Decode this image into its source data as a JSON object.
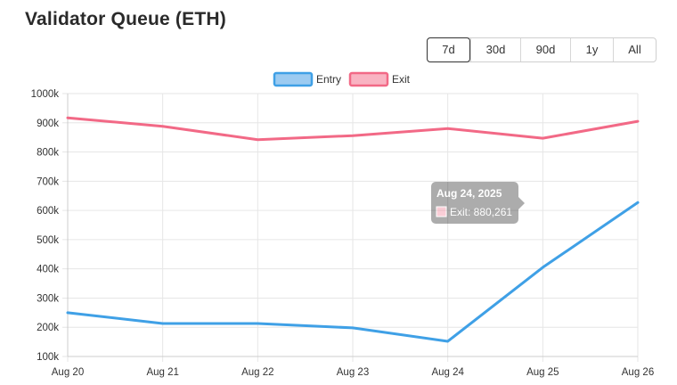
{
  "header": {
    "title": "Validator Queue (ETH)"
  },
  "range_selector": {
    "options": [
      "7d",
      "30d",
      "90d",
      "1y",
      "All"
    ],
    "active": "7d"
  },
  "tooltip": {
    "title": "Aug 24, 2025",
    "label": "Exit: 880,261"
  },
  "colors": {
    "entry": "#3fa0e6",
    "exit": "#f26986",
    "grid": "#e6e6e6"
  },
  "chart_data": {
    "type": "line",
    "x": [
      "Aug 20",
      "Aug 21",
      "Aug 22",
      "Aug 23",
      "Aug 24",
      "Aug 25",
      "Aug 26"
    ],
    "series": [
      {
        "name": "Entry",
        "values": [
          250000,
          213000,
          213000,
          198000,
          152000,
          405000,
          627000
        ]
      },
      {
        "name": "Exit",
        "values": [
          917000,
          888000,
          842000,
          856000,
          880261,
          847000,
          905000
        ]
      }
    ],
    "ylim": [
      100000,
      1000000
    ],
    "y_ticks": [
      "100k",
      "200k",
      "300k",
      "400k",
      "500k",
      "600k",
      "700k",
      "800k",
      "900k",
      "1000k"
    ],
    "y_tick_values": [
      100000,
      200000,
      300000,
      400000,
      500000,
      600000,
      700000,
      800000,
      900000,
      1000000
    ],
    "legend": "top",
    "grid": true,
    "title": "",
    "xlabel": "",
    "ylabel": ""
  }
}
